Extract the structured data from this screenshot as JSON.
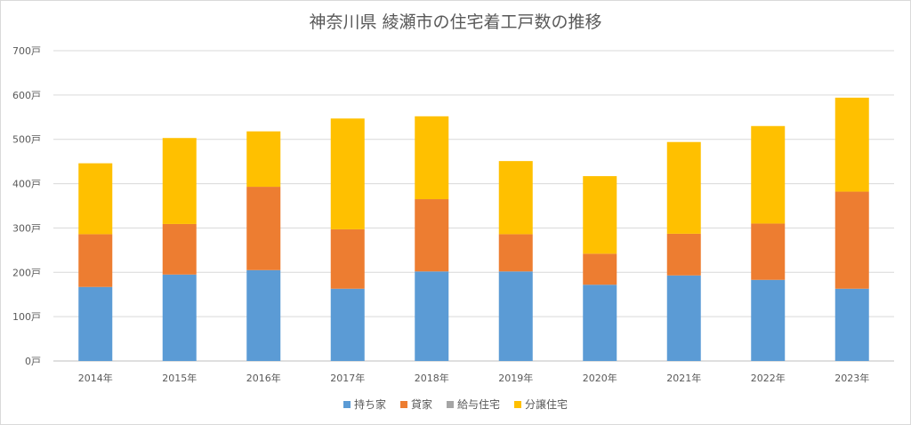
{
  "chart_data": {
    "type": "bar",
    "stacked": true,
    "title": "神奈川県 綾瀬市の住宅着工戸数の推移",
    "categories": [
      "2014年",
      "2015年",
      "2016年",
      "2017年",
      "2018年",
      "2019年",
      "2020年",
      "2021年",
      "2022年",
      "2023年"
    ],
    "y_ticks": [
      "0戸",
      "100戸",
      "200戸",
      "300戸",
      "400戸",
      "500戸",
      "600戸",
      "700戸"
    ],
    "ylim": [
      0,
      700
    ],
    "grid": true,
    "legend_position": "bottom",
    "series": [
      {
        "name": "持ち家",
        "color": "#5b9bd5",
        "values": [
          167,
          195,
          205,
          163,
          202,
          202,
          172,
          193,
          183,
          163
        ]
      },
      {
        "name": "貸家",
        "color": "#ed7d31",
        "values": [
          119,
          114,
          188,
          134,
          163,
          84,
          70,
          94,
          127,
          219
        ]
      },
      {
        "name": "給与住宅",
        "color": "#a5a5a5",
        "values": [
          0,
          0,
          0,
          0,
          0,
          0,
          0,
          0,
          0,
          0
        ]
      },
      {
        "name": "分譲住宅",
        "color": "#ffc000",
        "values": [
          160,
          194,
          125,
          250,
          187,
          165,
          175,
          207,
          220,
          212
        ]
      }
    ]
  }
}
